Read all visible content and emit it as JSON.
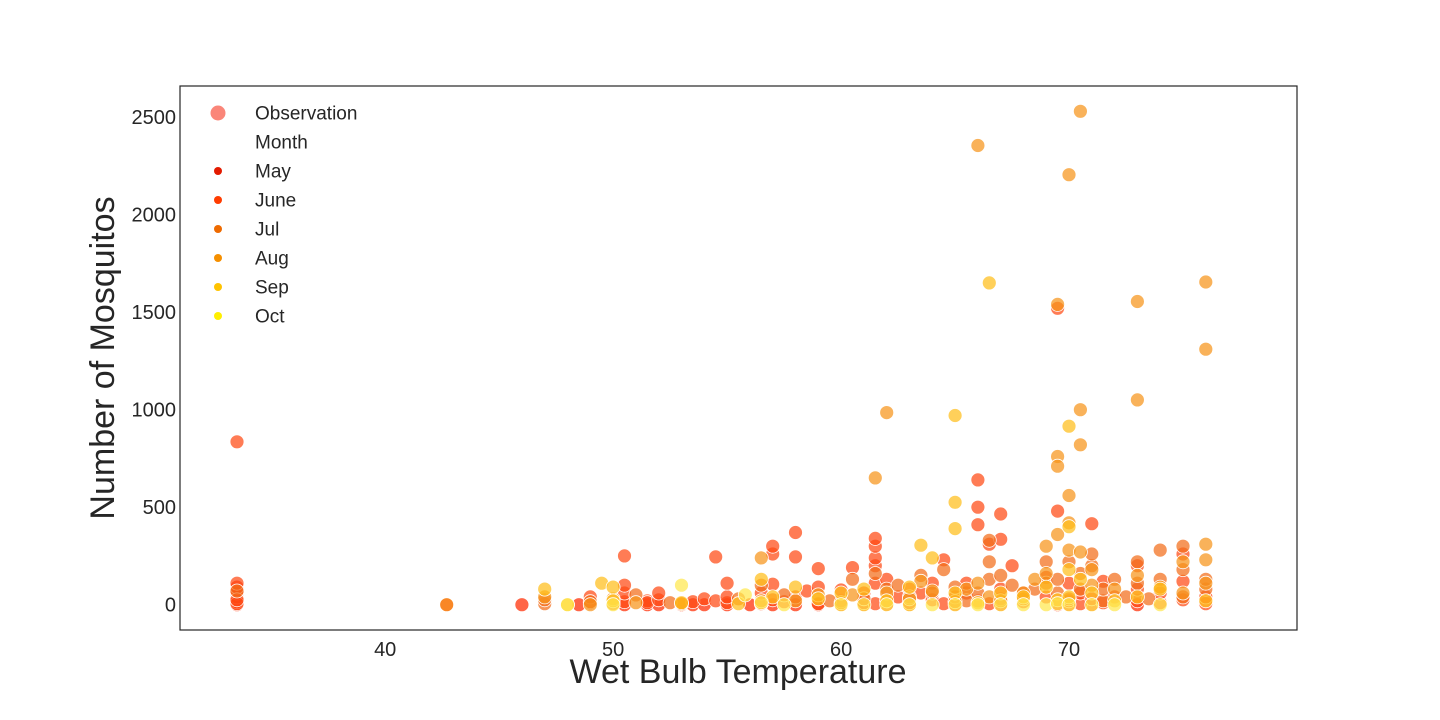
{
  "chart_data": {
    "type": "scatter",
    "xlabel": "Wet Bulb Temperature",
    "ylabel": "Number of Mosquitos",
    "xlim": [
      31,
      80
    ],
    "ylim": [
      -130,
      2660
    ],
    "xticks": [
      40,
      50,
      60,
      70
    ],
    "yticks": [
      0,
      500,
      1000,
      1500,
      2000,
      2500
    ],
    "grid": false,
    "legend": {
      "placement": "upper-left",
      "entries": [
        {
          "label": "Observation",
          "color": "#fa8072",
          "kind": "marker"
        },
        {
          "label": "Month",
          "kind": "title"
        },
        {
          "label": "May",
          "color": "#e31a00",
          "kind": "hue"
        },
        {
          "label": "June",
          "color": "#ff3c00",
          "kind": "hue"
        },
        {
          "label": "Jul",
          "color": "#ee6a00",
          "kind": "hue"
        },
        {
          "label": "Aug",
          "color": "#f58f00",
          "kind": "hue"
        },
        {
          "label": "Sep",
          "color": "#ffc300",
          "kind": "hue"
        },
        {
          "label": "Oct",
          "color": "#ffef00",
          "kind": "hue"
        }
      ]
    },
    "series": [
      {
        "name": "May",
        "color": "#ff2a00",
        "points": [
          [
            33.5,
            0
          ],
          [
            33.5,
            15
          ],
          [
            33.5,
            40
          ],
          [
            33.5,
            60
          ],
          [
            33.5,
            90
          ],
          [
            42.7,
            0
          ],
          [
            46,
            0
          ],
          [
            48.5,
            0
          ],
          [
            50.5,
            0
          ],
          [
            51.5,
            0
          ],
          [
            52,
            0
          ],
          [
            53,
            0
          ],
          [
            53.5,
            0
          ],
          [
            54,
            0
          ],
          [
            55,
            0
          ],
          [
            56,
            0
          ],
          [
            57,
            0
          ],
          [
            58,
            0
          ],
          [
            59,
            0
          ],
          [
            60,
            0
          ],
          [
            61,
            0
          ],
          [
            62,
            0
          ],
          [
            63,
            0
          ],
          [
            65,
            0
          ],
          [
            67,
            0
          ],
          [
            69.5,
            0
          ],
          [
            70,
            0
          ],
          [
            71,
            0
          ],
          [
            73,
            0
          ]
        ]
      },
      {
        "name": "June",
        "color": "#ff4a14",
        "points": [
          [
            33.5,
            835
          ],
          [
            33.5,
            5
          ],
          [
            33.5,
            25
          ],
          [
            33.5,
            110
          ],
          [
            49,
            10
          ],
          [
            49,
            40
          ],
          [
            50.5,
            15
          ],
          [
            50.5,
            60
          ],
          [
            50.5,
            100
          ],
          [
            50.5,
            250
          ],
          [
            51.5,
            20
          ],
          [
            51.5,
            10
          ],
          [
            52,
            25
          ],
          [
            52,
            60
          ],
          [
            53,
            5
          ],
          [
            53.5,
            15
          ],
          [
            54,
            30
          ],
          [
            54.5,
            20
          ],
          [
            54.5,
            245
          ],
          [
            55,
            10
          ],
          [
            55,
            40
          ],
          [
            55,
            110
          ],
          [
            56.5,
            5
          ],
          [
            56.5,
            60
          ],
          [
            57,
            25
          ],
          [
            57,
            105
          ],
          [
            57,
            260
          ],
          [
            57,
            300
          ],
          [
            57.5,
            15
          ],
          [
            58,
            40
          ],
          [
            58,
            245
          ],
          [
            58,
            370
          ],
          [
            58.5,
            70
          ],
          [
            59,
            5
          ],
          [
            59,
            90
          ],
          [
            59,
            185
          ],
          [
            60,
            20
          ],
          [
            60,
            75
          ],
          [
            60.5,
            190
          ],
          [
            61,
            10
          ],
          [
            61,
            60
          ],
          [
            61.5,
            5
          ],
          [
            61.5,
            110
          ],
          [
            61.5,
            200
          ],
          [
            61.5,
            240
          ],
          [
            61.5,
            300
          ],
          [
            61.5,
            340
          ],
          [
            62,
            20
          ],
          [
            62,
            130
          ],
          [
            62.5,
            40
          ],
          [
            63,
            10
          ],
          [
            63,
            80
          ],
          [
            63.5,
            60
          ],
          [
            64,
            25
          ],
          [
            64,
            110
          ],
          [
            64.5,
            5
          ],
          [
            64.5,
            230
          ],
          [
            65,
            15
          ],
          [
            65,
            40
          ],
          [
            65.5,
            60
          ],
          [
            65.5,
            110
          ],
          [
            66,
            20
          ],
          [
            66,
            410
          ],
          [
            66,
            500
          ],
          [
            66,
            640
          ],
          [
            66.5,
            5
          ],
          [
            66.5,
            310
          ],
          [
            67,
            30
          ],
          [
            67,
            80
          ],
          [
            67,
            335
          ],
          [
            67,
            465
          ],
          [
            67.5,
            200
          ],
          [
            68,
            15
          ],
          [
            68,
            60
          ],
          [
            69,
            40
          ],
          [
            69,
            140
          ],
          [
            69.5,
            1520
          ],
          [
            69.5,
            480
          ],
          [
            70,
            20
          ],
          [
            70,
            110
          ],
          [
            70.5,
            5
          ],
          [
            70.5,
            60
          ],
          [
            71,
            30
          ],
          [
            71,
            415
          ],
          [
            71.5,
            10
          ],
          [
            71.5,
            120
          ],
          [
            72,
            40
          ],
          [
            73,
            20
          ],
          [
            73,
            80
          ],
          [
            73,
            200
          ],
          [
            74,
            10
          ],
          [
            74,
            60
          ],
          [
            75,
            25
          ],
          [
            75,
            120
          ],
          [
            75,
            260
          ],
          [
            76,
            5
          ],
          [
            76,
            40
          ]
        ]
      },
      {
        "name": "Jul",
        "color": "#f26e1a",
        "points": [
          [
            33.5,
            70
          ],
          [
            47,
            5
          ],
          [
            47,
            25
          ],
          [
            49,
            15
          ],
          [
            50,
            5
          ],
          [
            51,
            50
          ],
          [
            52.5,
            10
          ],
          [
            55.5,
            30
          ],
          [
            56.5,
            100
          ],
          [
            57.5,
            50
          ],
          [
            59.5,
            20
          ],
          [
            60.5,
            130
          ],
          [
            61,
            30
          ],
          [
            61.5,
            160
          ],
          [
            62,
            80
          ],
          [
            62.5,
            100
          ],
          [
            63,
            40
          ],
          [
            63.5,
            150
          ],
          [
            64,
            60
          ],
          [
            64.5,
            180
          ],
          [
            65,
            90
          ],
          [
            65.5,
            20
          ],
          [
            66,
            60
          ],
          [
            66.5,
            130
          ],
          [
            66.5,
            220
          ],
          [
            66.5,
            330
          ],
          [
            67,
            150
          ],
          [
            67.5,
            100
          ],
          [
            68,
            30
          ],
          [
            68.5,
            80
          ],
          [
            69,
            110
          ],
          [
            69,
            220
          ],
          [
            69.5,
            60
          ],
          [
            69.5,
            130
          ],
          [
            70,
            220
          ],
          [
            70,
            30
          ],
          [
            70.5,
            80
          ],
          [
            70.5,
            160
          ],
          [
            71,
            200
          ],
          [
            71,
            260
          ],
          [
            71.5,
            20
          ],
          [
            71.5,
            80
          ],
          [
            72,
            130
          ],
          [
            72.5,
            40
          ],
          [
            73,
            110
          ],
          [
            73,
            220
          ],
          [
            73.5,
            30
          ],
          [
            74,
            130
          ],
          [
            74,
            280
          ],
          [
            75,
            40
          ],
          [
            75,
            180
          ],
          [
            75,
            300
          ],
          [
            76,
            80
          ],
          [
            76,
            130
          ]
        ]
      },
      {
        "name": "Aug",
        "color": "#f7941a",
        "points": [
          [
            42.7,
            0
          ],
          [
            47,
            40
          ],
          [
            49,
            0
          ],
          [
            50,
            30
          ],
          [
            51,
            10
          ],
          [
            53,
            5
          ],
          [
            56.5,
            20
          ],
          [
            56.5,
            240
          ],
          [
            58,
            20
          ],
          [
            59,
            50
          ],
          [
            60,
            10
          ],
          [
            60.5,
            50
          ],
          [
            61.5,
            650
          ],
          [
            62,
            985
          ],
          [
            62,
            60
          ],
          [
            63,
            30
          ],
          [
            63.5,
            120
          ],
          [
            64,
            70
          ],
          [
            65,
            15
          ],
          [
            65.5,
            80
          ],
          [
            66,
            2355
          ],
          [
            66,
            110
          ],
          [
            66.5,
            40
          ],
          [
            67,
            20
          ],
          [
            68,
            60
          ],
          [
            68.5,
            130
          ],
          [
            69,
            160
          ],
          [
            69,
            300
          ],
          [
            69.5,
            1540
          ],
          [
            69.5,
            760
          ],
          [
            69.5,
            710
          ],
          [
            69.5,
            360
          ],
          [
            70,
            2205
          ],
          [
            70,
            560
          ],
          [
            70,
            420
          ],
          [
            70,
            280
          ],
          [
            70.5,
            2530
          ],
          [
            70.5,
            1000
          ],
          [
            70.5,
            820
          ],
          [
            70.5,
            270
          ],
          [
            71,
            100
          ],
          [
            71,
            180
          ],
          [
            72,
            80
          ],
          [
            73,
            1555
          ],
          [
            73,
            1050
          ],
          [
            73,
            150
          ],
          [
            74,
            90
          ],
          [
            75,
            60
          ],
          [
            75,
            220
          ],
          [
            76,
            1655
          ],
          [
            76,
            1310
          ],
          [
            76,
            310
          ],
          [
            76,
            230
          ],
          [
            76,
            110
          ]
        ]
      },
      {
        "name": "Sep",
        "color": "#ffbe1a",
        "points": [
          [
            47,
            80
          ],
          [
            48,
            0
          ],
          [
            49.5,
            110
          ],
          [
            50,
            90
          ],
          [
            50,
            20
          ],
          [
            53,
            10
          ],
          [
            55.5,
            5
          ],
          [
            56.5,
            130
          ],
          [
            57,
            40
          ],
          [
            58,
            90
          ],
          [
            59,
            30
          ],
          [
            60,
            60
          ],
          [
            61,
            80
          ],
          [
            62,
            20
          ],
          [
            63,
            90
          ],
          [
            63.5,
            305
          ],
          [
            64,
            240
          ],
          [
            65,
            970
          ],
          [
            65,
            525
          ],
          [
            65,
            390
          ],
          [
            65,
            60
          ],
          [
            66,
            10
          ],
          [
            66.5,
            1650
          ],
          [
            67,
            60
          ],
          [
            68,
            40
          ],
          [
            69,
            90
          ],
          [
            69.5,
            25
          ],
          [
            70,
            915
          ],
          [
            70,
            400
          ],
          [
            70,
            180
          ],
          [
            70,
            40
          ],
          [
            70.5,
            130
          ],
          [
            71,
            60
          ],
          [
            72,
            20
          ],
          [
            73,
            40
          ],
          [
            74,
            80
          ],
          [
            76,
            20
          ]
        ]
      },
      {
        "name": "Oct",
        "color": "#ffe84d",
        "points": [
          [
            48,
            0
          ],
          [
            50,
            0
          ],
          [
            53,
            100
          ],
          [
            55.8,
            50
          ],
          [
            56.5,
            10
          ],
          [
            57.5,
            0
          ],
          [
            60,
            0
          ],
          [
            61,
            0
          ],
          [
            62,
            0
          ],
          [
            63,
            0
          ],
          [
            64,
            0
          ],
          [
            65,
            0
          ],
          [
            66,
            0
          ],
          [
            67,
            0
          ],
          [
            68,
            0
          ],
          [
            69,
            0
          ],
          [
            69.5,
            5
          ],
          [
            70,
            0
          ],
          [
            71,
            0
          ],
          [
            72,
            0
          ],
          [
            74,
            0
          ]
        ]
      }
    ]
  }
}
